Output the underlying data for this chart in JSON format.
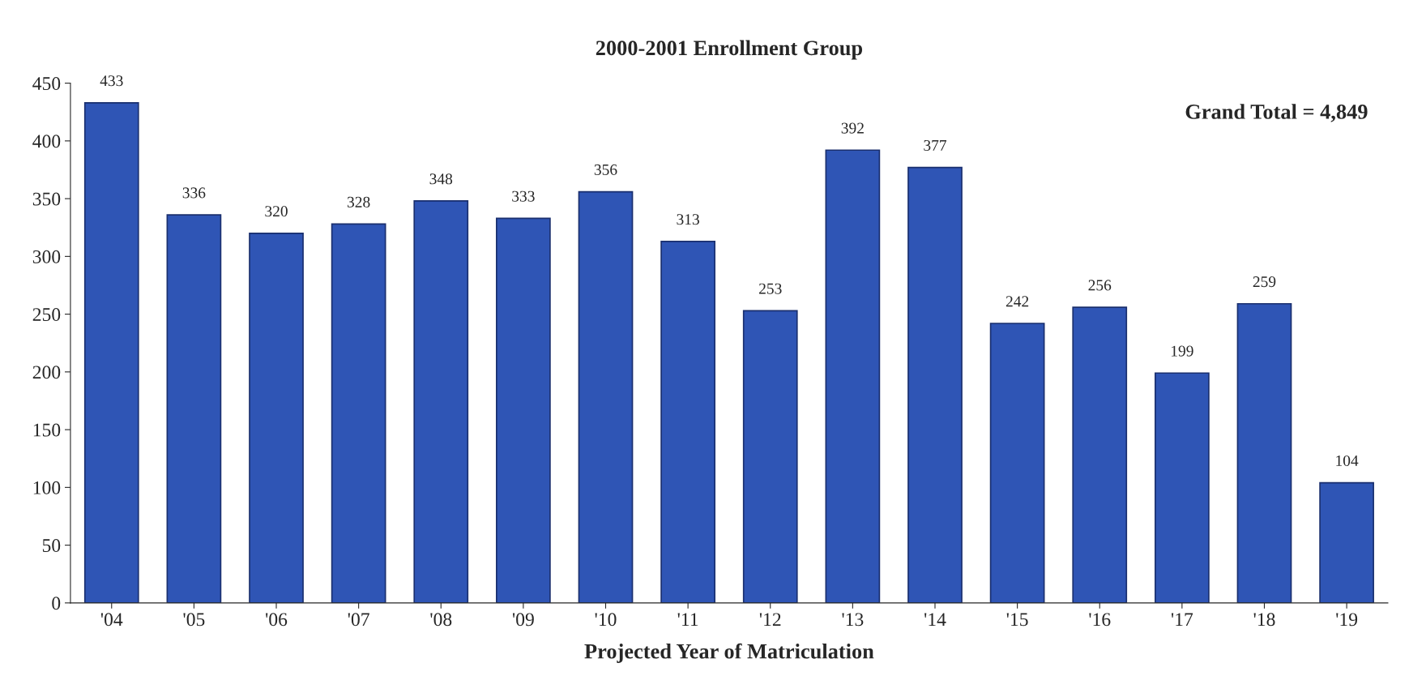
{
  "chart_data": {
    "type": "bar",
    "title": "2000-2001 Enrollment Group",
    "xlabel": "Projected Year of Matriculation",
    "annotations": [
      "Grand Total = 4,849"
    ],
    "categories": [
      "'04",
      "'05",
      "'06",
      "'07",
      "'08",
      "'09",
      "'10",
      "'11",
      "'12",
      "'13",
      "'14",
      "'15",
      "'16",
      "'17",
      "'18",
      "'19"
    ],
    "values": [
      433,
      336,
      320,
      328,
      348,
      333,
      356,
      313,
      253,
      392,
      377,
      242,
      256,
      199,
      259,
      104
    ],
    "color": "#2f55b5",
    "ylim": [
      0,
      450
    ],
    "yticks": [
      0,
      50,
      100,
      150,
      200,
      250,
      300,
      350,
      400,
      450
    ],
    "data_labels": true,
    "grid": false,
    "legend": false
  }
}
